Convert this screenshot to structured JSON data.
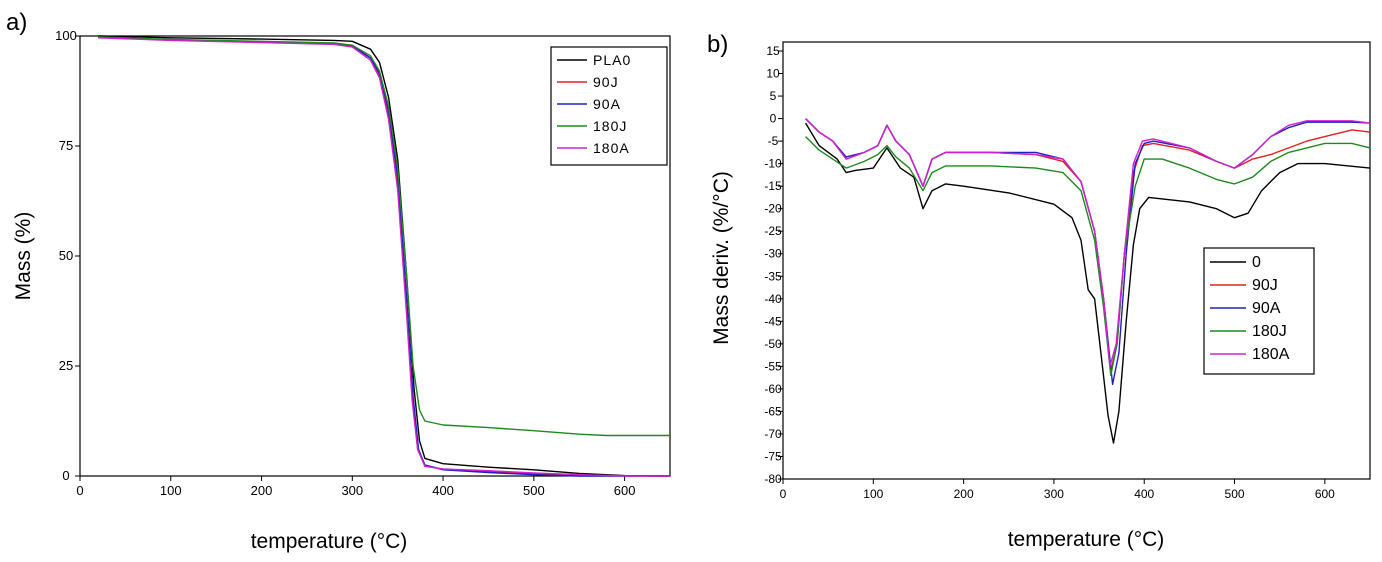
{
  "chart_data": [
    {
      "panel_label": "a)",
      "type": "line",
      "xlabel": "temperature (°C)",
      "ylabel": "Mass (%)",
      "xlim": [
        0,
        650
      ],
      "ylim": [
        0,
        100
      ],
      "xticks": [
        0,
        100,
        200,
        300,
        400,
        500,
        600
      ],
      "yticks": [
        0,
        25,
        50,
        75,
        100
      ],
      "legend_position": "top-right",
      "series": [
        {
          "name": "PLA0",
          "color": "#000000",
          "points": [
            [
              20,
              100
            ],
            [
              100,
              99.6
            ],
            [
              200,
              99.3
            ],
            [
              280,
              99
            ],
            [
              300,
              98.8
            ],
            [
              320,
              97
            ],
            [
              330,
              94
            ],
            [
              340,
              86
            ],
            [
              350,
              72
            ],
            [
              360,
              45
            ],
            [
              368,
              20
            ],
            [
              374,
              8
            ],
            [
              380,
              4
            ],
            [
              400,
              2.8
            ],
            [
              450,
              2
            ],
            [
              500,
              1.4
            ],
            [
              550,
              0.6
            ],
            [
              600,
              0.1
            ],
            [
              650,
              0
            ]
          ]
        },
        {
          "name": "90J",
          "color": "#e02020",
          "points": [
            [
              20,
              99.7
            ],
            [
              100,
              99.1
            ],
            [
              200,
              98.6
            ],
            [
              280,
              98.2
            ],
            [
              300,
              97.7
            ],
            [
              320,
              95
            ],
            [
              330,
              91
            ],
            [
              340,
              82
            ],
            [
              350,
              66
            ],
            [
              360,
              38
            ],
            [
              366,
              18
            ],
            [
              372,
              6
            ],
            [
              380,
              2.5
            ],
            [
              400,
              1.5
            ],
            [
              450,
              1
            ],
            [
              500,
              0.5
            ],
            [
              550,
              0.1
            ],
            [
              650,
              0
            ]
          ]
        },
        {
          "name": "90A",
          "color": "#2020c0",
          "points": [
            [
              20,
              99.7
            ],
            [
              100,
              99.1
            ],
            [
              200,
              98.6
            ],
            [
              280,
              98.3
            ],
            [
              300,
              97.8
            ],
            [
              320,
              95
            ],
            [
              330,
              91.5
            ],
            [
              340,
              83
            ],
            [
              350,
              68
            ],
            [
              360,
              40
            ],
            [
              367,
              18
            ],
            [
              373,
              6
            ],
            [
              380,
              2.5
            ],
            [
              400,
              1.4
            ],
            [
              450,
              0.8
            ],
            [
              500,
              0.3
            ],
            [
              550,
              0
            ],
            [
              650,
              0
            ]
          ]
        },
        {
          "name": "180J",
          "color": "#1e8a1e",
          "points": [
            [
              20,
              99.8
            ],
            [
              100,
              99.2
            ],
            [
              200,
              98.8
            ],
            [
              280,
              98.4
            ],
            [
              300,
              97.9
            ],
            [
              320,
              95.5
            ],
            [
              330,
              92
            ],
            [
              340,
              84
            ],
            [
              350,
              70
            ],
            [
              360,
              45
            ],
            [
              367,
              25
            ],
            [
              374,
              15
            ],
            [
              380,
              12.5
            ],
            [
              400,
              11.6
            ],
            [
              450,
              11
            ],
            [
              500,
              10.3
            ],
            [
              550,
              9.5
            ],
            [
              580,
              9.2
            ],
            [
              650,
              9.2
            ]
          ]
        },
        {
          "name": "180A",
          "color": "#d020d0",
          "points": [
            [
              20,
              99.6
            ],
            [
              100,
              99
            ],
            [
              200,
              98.5
            ],
            [
              280,
              98.1
            ],
            [
              300,
              97.5
            ],
            [
              320,
              94.5
            ],
            [
              330,
              90.5
            ],
            [
              340,
              81
            ],
            [
              350,
              65
            ],
            [
              360,
              36
            ],
            [
              366,
              17
            ],
            [
              372,
              6
            ],
            [
              380,
              2.2
            ],
            [
              400,
              1.6
            ],
            [
              450,
              1.2
            ],
            [
              500,
              0.7
            ],
            [
              550,
              0.3
            ],
            [
              600,
              0
            ],
            [
              650,
              0
            ]
          ]
        }
      ]
    },
    {
      "panel_label": "b)",
      "type": "line",
      "xlabel": "temperature (°C)",
      "ylabel": "Mass deriv. (%/°C)",
      "xlim": [
        0,
        650
      ],
      "ylim": [
        -80,
        17
      ],
      "xticks": [
        0,
        100,
        200,
        300,
        400,
        500,
        600
      ],
      "yticks": [
        -80,
        -75,
        -70,
        -65,
        -60,
        -55,
        -50,
        -45,
        -40,
        -35,
        -30,
        -25,
        -20,
        -15,
        -10,
        -5,
        0,
        5,
        10,
        15
      ],
      "legend_position": "center-right",
      "series": [
        {
          "name": "0",
          "color": "#000000",
          "points": [
            [
              25,
              -1
            ],
            [
              40,
              -6
            ],
            [
              60,
              -9
            ],
            [
              70,
              -12
            ],
            [
              80,
              -11.5
            ],
            [
              100,
              -11
            ],
            [
              115,
              -6.5
            ],
            [
              130,
              -11
            ],
            [
              145,
              -13
            ],
            [
              155,
              -20
            ],
            [
              165,
              -16
            ],
            [
              180,
              -14.5
            ],
            [
              200,
              -15
            ],
            [
              250,
              -16.5
            ],
            [
              300,
              -19
            ],
            [
              320,
              -22
            ],
            [
              330,
              -27
            ],
            [
              338,
              -38
            ],
            [
              345,
              -40
            ],
            [
              352,
              -52
            ],
            [
              360,
              -66
            ],
            [
              366,
              -72
            ],
            [
              372,
              -65
            ],
            [
              380,
              -45
            ],
            [
              388,
              -28
            ],
            [
              395,
              -20
            ],
            [
              405,
              -17.5
            ],
            [
              450,
              -18.5
            ],
            [
              480,
              -20
            ],
            [
              500,
              -22
            ],
            [
              515,
              -21
            ],
            [
              530,
              -16
            ],
            [
              550,
              -12
            ],
            [
              570,
              -10
            ],
            [
              600,
              -10
            ],
            [
              650,
              -11
            ]
          ]
        },
        {
          "name": "90J",
          "color": "#e02020",
          "points": [
            [
              25,
              0
            ],
            [
              40,
              -3
            ],
            [
              55,
              -5
            ],
            [
              70,
              -9
            ],
            [
              90,
              -7.5
            ],
            [
              105,
              -6
            ],
            [
              115,
              -1.5
            ],
            [
              125,
              -5
            ],
            [
              140,
              -8
            ],
            [
              155,
              -15
            ],
            [
              165,
              -9
            ],
            [
              180,
              -7.5
            ],
            [
              230,
              -7.5
            ],
            [
              280,
              -8
            ],
            [
              310,
              -9.5
            ],
            [
              330,
              -14
            ],
            [
              345,
              -25
            ],
            [
              355,
              -40
            ],
            [
              363,
              -56
            ],
            [
              370,
              -50
            ],
            [
              378,
              -30
            ],
            [
              388,
              -12
            ],
            [
              398,
              -6
            ],
            [
              410,
              -5.5
            ],
            [
              450,
              -7
            ],
            [
              480,
              -9.5
            ],
            [
              500,
              -11
            ],
            [
              520,
              -9
            ],
            [
              540,
              -8
            ],
            [
              560,
              -6.5
            ],
            [
              580,
              -5
            ],
            [
              600,
              -4
            ],
            [
              630,
              -2.5
            ],
            [
              650,
              -3
            ]
          ]
        },
        {
          "name": "90A",
          "color": "#2020c0",
          "points": [
            [
              25,
              0
            ],
            [
              40,
              -3
            ],
            [
              55,
              -5
            ],
            [
              70,
              -8.5
            ],
            [
              90,
              -7.5
            ],
            [
              105,
              -6
            ],
            [
              115,
              -1.5
            ],
            [
              125,
              -5
            ],
            [
              140,
              -8
            ],
            [
              155,
              -15
            ],
            [
              165,
              -9
            ],
            [
              180,
              -7.5
            ],
            [
              230,
              -7.5
            ],
            [
              280,
              -7.5
            ],
            [
              310,
              -9
            ],
            [
              330,
              -14
            ],
            [
              345,
              -25
            ],
            [
              355,
              -40
            ],
            [
              365,
              -59
            ],
            [
              372,
              -52
            ],
            [
              380,
              -30
            ],
            [
              390,
              -10
            ],
            [
              400,
              -5.5
            ],
            [
              410,
              -5
            ],
            [
              450,
              -6.5
            ],
            [
              480,
              -9.5
            ],
            [
              500,
              -11
            ],
            [
              520,
              -8
            ],
            [
              540,
              -4
            ],
            [
              560,
              -2
            ],
            [
              580,
              -0.8
            ],
            [
              600,
              -0.8
            ],
            [
              630,
              -0.8
            ],
            [
              650,
              -1
            ]
          ]
        },
        {
          "name": "180J",
          "color": "#1e8a1e",
          "points": [
            [
              25,
              -4
            ],
            [
              40,
              -7
            ],
            [
              55,
              -9
            ],
            [
              70,
              -11
            ],
            [
              90,
              -9.5
            ],
            [
              105,
              -8
            ],
            [
              115,
              -6
            ],
            [
              125,
              -8.5
            ],
            [
              140,
              -11
            ],
            [
              155,
              -16
            ],
            [
              165,
              -12
            ],
            [
              180,
              -10.5
            ],
            [
              230,
              -10.5
            ],
            [
              280,
              -11
            ],
            [
              310,
              -12
            ],
            [
              330,
              -16
            ],
            [
              345,
              -27
            ],
            [
              355,
              -42
            ],
            [
              363,
              -57
            ],
            [
              370,
              -50
            ],
            [
              378,
              -30
            ],
            [
              390,
              -15
            ],
            [
              400,
              -9
            ],
            [
              420,
              -9
            ],
            [
              450,
              -11
            ],
            [
              480,
              -13.5
            ],
            [
              500,
              -14.5
            ],
            [
              520,
              -13
            ],
            [
              540,
              -9.5
            ],
            [
              560,
              -7.5
            ],
            [
              580,
              -6.5
            ],
            [
              600,
              -5.5
            ],
            [
              630,
              -5.5
            ],
            [
              650,
              -6.5
            ]
          ]
        },
        {
          "name": "180A",
          "color": "#d020d0",
          "points": [
            [
              25,
              0
            ],
            [
              40,
              -3
            ],
            [
              55,
              -5
            ],
            [
              70,
              -9
            ],
            [
              90,
              -7.5
            ],
            [
              105,
              -6
            ],
            [
              115,
              -1.5
            ],
            [
              125,
              -5
            ],
            [
              140,
              -8
            ],
            [
              155,
              -15
            ],
            [
              165,
              -9
            ],
            [
              180,
              -7.5
            ],
            [
              230,
              -7.5
            ],
            [
              280,
              -8
            ],
            [
              310,
              -9
            ],
            [
              330,
              -14
            ],
            [
              345,
              -25
            ],
            [
              355,
              -40
            ],
            [
              362,
              -55
            ],
            [
              369,
              -50
            ],
            [
              378,
              -30
            ],
            [
              388,
              -10
            ],
            [
              398,
              -5
            ],
            [
              410,
              -4.5
            ],
            [
              450,
              -6.5
            ],
            [
              480,
              -9.5
            ],
            [
              500,
              -11
            ],
            [
              520,
              -8
            ],
            [
              540,
              -4
            ],
            [
              560,
              -1.5
            ],
            [
              580,
              -0.5
            ],
            [
              600,
              -0.5
            ],
            [
              630,
              -0.5
            ],
            [
              650,
              -1
            ]
          ]
        }
      ]
    }
  ]
}
